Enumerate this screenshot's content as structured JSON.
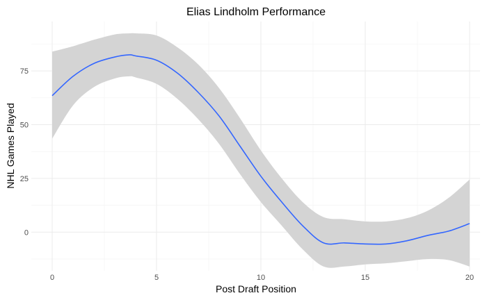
{
  "chart_data": {
    "type": "line",
    "title": "Elias Lindholm Performance",
    "xlabel": "Post Draft Position",
    "ylabel": "NHL Games Played",
    "xlim": [
      -1,
      20.5
    ],
    "ylim": [
      -18,
      98
    ],
    "xticks": [
      0,
      5,
      10,
      15,
      20
    ],
    "yticks": [
      0,
      25,
      50,
      75
    ],
    "grid": true,
    "legend": "none",
    "colors": {
      "line": "#3366ff",
      "ribbon": "#d4d4d4"
    },
    "series": [
      {
        "x": [
          0,
          1,
          2,
          3,
          3.7,
          4,
          5,
          6,
          7,
          8,
          9,
          10,
          11,
          12,
          13,
          14,
          15,
          16,
          17,
          18,
          19,
          20
        ],
        "y": [
          63.5,
          72.5,
          78.5,
          81.5,
          82.5,
          82,
          80,
          74,
          65,
          54,
          40,
          26,
          14,
          3,
          -5,
          -5,
          -5.5,
          -5.5,
          -4,
          -1.5,
          0.5,
          4
        ],
        "lower": [
          43.5,
          59,
          67.5,
          71.5,
          72.5,
          72,
          69,
          62,
          52.5,
          41,
          27,
          14,
          3,
          -8,
          -16,
          -16,
          -15,
          -14.5,
          -13.5,
          -12.5,
          -13,
          -16
        ],
        "upper": [
          84,
          86.5,
          89.5,
          92,
          92.5,
          92.5,
          91.5,
          86,
          78,
          67,
          53,
          38,
          25,
          14,
          7,
          6,
          5,
          5,
          6.5,
          10,
          16,
          24.5
        ]
      }
    ]
  }
}
